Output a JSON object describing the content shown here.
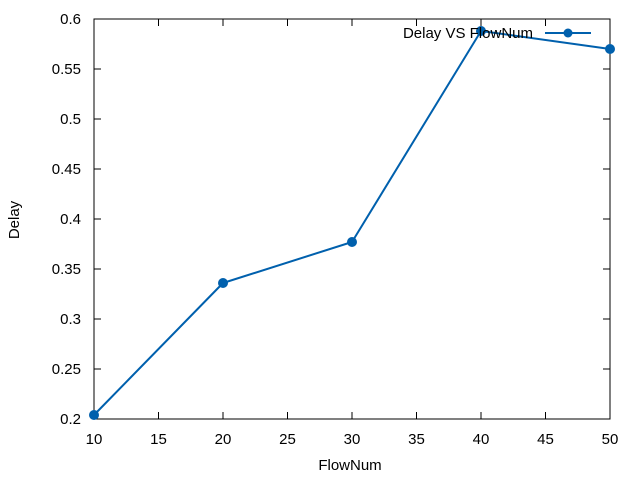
{
  "chart_data": {
    "type": "line",
    "title": "",
    "xlabel": "FlowNum",
    "ylabel": "Delay",
    "x": [
      10,
      20,
      30,
      40,
      50
    ],
    "series": [
      {
        "name": "Delay VS FlowNum",
        "values": [
          0.204,
          0.336,
          0.377,
          0.588,
          0.57
        ],
        "color": "#0060ad"
      }
    ],
    "xlim": [
      10,
      50
    ],
    "ylim": [
      0.2,
      0.6
    ],
    "xticks": [
      "10",
      "15",
      "20",
      "25",
      "30",
      "35",
      "40",
      "45",
      "50"
    ],
    "yticks": [
      "0.2",
      "0.25",
      "0.3",
      "0.35",
      "0.4",
      "0.45",
      "0.5",
      "0.55",
      "0.6"
    ],
    "grid": false,
    "legend_position": "top-right",
    "marker": "circle"
  }
}
